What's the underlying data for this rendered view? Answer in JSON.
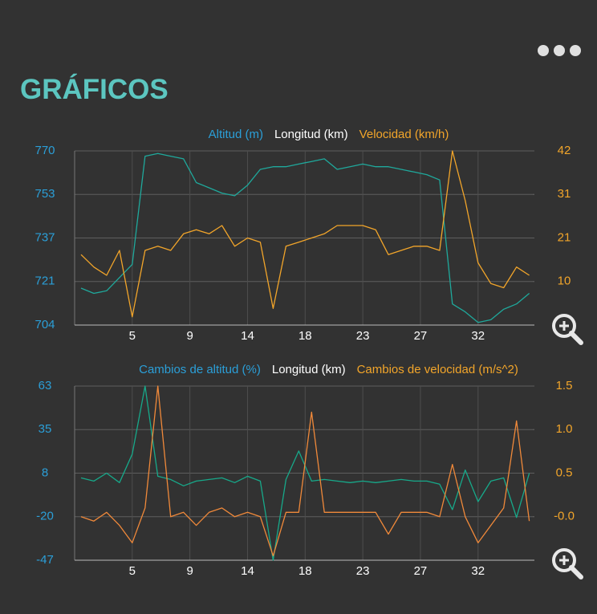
{
  "title": "GRÁFICOS",
  "chart_data": [
    {
      "type": "line",
      "xlabel": "Longitud (km)",
      "x": [
        1,
        2,
        3,
        4,
        5,
        6,
        7,
        8,
        9,
        10,
        11,
        12,
        13,
        14,
        15,
        16,
        17,
        18,
        19,
        20,
        21,
        22,
        23,
        24,
        25,
        26,
        27,
        28,
        29,
        30,
        31,
        32,
        33,
        34,
        35,
        36
      ],
      "xlim": [
        0.5,
        36.4
      ],
      "xticks": [
        5,
        {
          "value": 9.5,
          "label": "9"
        },
        14,
        {
          "value": 18.5,
          "label": "18"
        },
        23,
        {
          "value": 27.5,
          "label": "27"
        },
        32
      ],
      "ylim": [
        704,
        770
      ],
      "yticks": [
        704,
        {
          "value": 720.5,
          "label": "721"
        },
        737,
        {
          "value": 753.5,
          "label": "753"
        },
        770
      ],
      "y2lim": [
        0,
        42
      ],
      "y2ticks": [
        {
          "value": 10.5,
          "label": "10"
        },
        21,
        {
          "value": 31.5,
          "label": "31"
        },
        42
      ],
      "grid": true,
      "series": [
        {
          "name": "Altitud (m)",
          "color": "#1fa99c",
          "values": [
            718,
            716,
            717,
            722,
            727,
            768,
            769,
            768,
            767,
            758,
            756,
            754,
            753,
            757,
            763,
            764,
            764,
            765,
            766,
            767,
            763,
            764,
            765,
            764,
            764,
            763,
            762,
            761,
            759,
            712,
            709,
            705,
            706,
            710,
            712,
            716
          ]
        },
        {
          "name": "Velocidad (km/h)",
          "color": "#f2a52a",
          "axis": "y2",
          "values": [
            17,
            14,
            12,
            18,
            2,
            18,
            19,
            18,
            22,
            23,
            22,
            24,
            19,
            21,
            20,
            4,
            19,
            20,
            21,
            22,
            24,
            24,
            24,
            23,
            17,
            18,
            19,
            19,
            18,
            42,
            30,
            15,
            10,
            9,
            14,
            12
          ]
        }
      ]
    },
    {
      "type": "line",
      "xlabel": "Longitud (km)",
      "x": [
        1,
        2,
        3,
        4,
        5,
        6,
        7,
        8,
        9,
        10,
        11,
        12,
        13,
        14,
        15,
        16,
        17,
        18,
        19,
        20,
        21,
        22,
        23,
        24,
        25,
        26,
        27,
        28,
        29,
        30,
        31,
        32,
        33,
        34,
        35,
        36
      ],
      "xlim": [
        0.5,
        36.4
      ],
      "xticks": [
        5,
        {
          "value": 9.5,
          "label": "9"
        },
        14,
        {
          "value": 18.5,
          "label": "18"
        },
        23,
        {
          "value": 27.5,
          "label": "27"
        },
        32
      ],
      "ylim": [
        -47,
        63
      ],
      "yticks": [
        -47,
        {
          "value": -19.5,
          "label": "-20"
        },
        8,
        {
          "value": 35.5,
          "label": "35"
        },
        63
      ],
      "y2lim": [
        -0.5,
        1.5
      ],
      "y2ticks": [
        {
          "value": 0,
          "label": "-0.0"
        },
        0.5,
        {
          "value": 1,
          "label": "1.0"
        },
        1.5
      ],
      "grid": true,
      "series": [
        {
          "name": "Cambios de altitud (%)",
          "color": "#17a98a",
          "values": [
            5,
            3,
            8,
            2,
            20,
            63,
            6,
            4,
            0,
            3,
            4,
            5,
            2,
            6,
            3,
            -47,
            4,
            22,
            3,
            4,
            3,
            2,
            3,
            2,
            3,
            4,
            3,
            3,
            1,
            -15,
            10,
            -10,
            3,
            5,
            -20,
            8
          ]
        },
        {
          "name": "Cambios de velocidad (m/s^2)",
          "color": "#f0893a",
          "axis": "y2",
          "values": [
            0.0,
            -0.05,
            0.05,
            -0.1,
            -0.3,
            0.1,
            1.5,
            0.0,
            0.05,
            -0.1,
            0.05,
            0.1,
            0.0,
            0.05,
            0.0,
            -0.45,
            0.05,
            0.05,
            1.2,
            0.05,
            0.05,
            0.05,
            0.05,
            0.05,
            -0.2,
            0.05,
            0.05,
            0.05,
            0.0,
            0.6,
            0.0,
            -0.3,
            -0.1,
            0.1,
            1.1,
            -0.05
          ]
        }
      ]
    }
  ]
}
